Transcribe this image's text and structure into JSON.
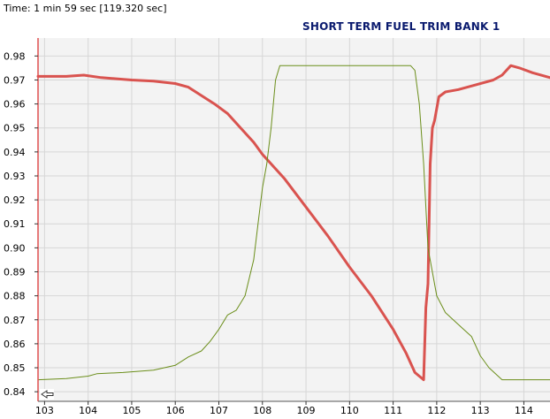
{
  "header": {
    "time_readout": "Time: 1 min 59 sec [119.320 sec]"
  },
  "chart_data": {
    "type": "line",
    "title": "SHORT TERM FUEL TRIM BANK 1",
    "xlabel": "",
    "ylabel": "",
    "xlim": [
      102.85,
      114.6
    ],
    "ylim": [
      0.836,
      0.9875
    ],
    "x_ticks": [
      103,
      104,
      105,
      106,
      107,
      108,
      109,
      110,
      111,
      112,
      113,
      114
    ],
    "y_ticks": [
      0.84,
      0.85,
      0.86,
      0.87,
      0.88,
      0.89,
      0.9,
      0.91,
      0.92,
      0.93,
      0.94,
      0.95,
      0.96,
      0.97,
      0.98
    ],
    "y_tick_labels": [
      "0.84",
      "0.85",
      "0.86",
      "0.87",
      "0.88",
      "0.89",
      "0.90",
      "0.91",
      "0.92",
      "0.93",
      "0.94",
      "0.95",
      "0.96",
      "0.97",
      "0.98"
    ],
    "grid": true,
    "colors": {
      "red_series": "#d9534f",
      "green_series": "#6b8e1a",
      "grid": "#d6d6d6",
      "plot_bg": "#f3f3f3",
      "left_axis": "#e05050"
    },
    "series": [
      {
        "color": "#d9534f",
        "x": [
          102.85,
          103.5,
          103.9,
          104.3,
          105.0,
          105.5,
          106.0,
          106.3,
          106.6,
          106.9,
          107.2,
          107.5,
          107.8,
          108.0,
          108.5,
          109.0,
          109.5,
          110.0,
          110.5,
          111.0,
          111.3,
          111.5,
          111.7,
          111.75,
          111.8,
          111.85,
          111.9,
          111.95,
          112.05,
          112.2,
          112.5,
          112.9,
          113.3,
          113.5,
          113.7,
          113.9,
          114.2,
          114.6
        ],
        "y": [
          0.9715,
          0.9715,
          0.972,
          0.971,
          0.97,
          0.9695,
          0.9685,
          0.967,
          0.9635,
          0.96,
          0.956,
          0.95,
          0.944,
          0.939,
          0.929,
          0.917,
          0.905,
          0.892,
          0.88,
          0.866,
          0.856,
          0.848,
          0.845,
          0.875,
          0.885,
          0.935,
          0.95,
          0.953,
          0.963,
          0.965,
          0.966,
          0.968,
          0.97,
          0.972,
          0.976,
          0.975,
          0.973,
          0.971
        ]
      },
      {
        "color": "#6b8e1a",
        "x": [
          102.85,
          103.5,
          104.0,
          104.2,
          104.8,
          105.5,
          106.0,
          106.3,
          106.6,
          106.8,
          107.0,
          107.2,
          107.4,
          107.6,
          107.8,
          107.9,
          108.0,
          108.1,
          108.2,
          108.3,
          108.4,
          109.0,
          109.5,
          110.0,
          110.5,
          111.0,
          111.4,
          111.5,
          111.6,
          111.7,
          111.8,
          112.0,
          112.2,
          112.5,
          112.8,
          113.0,
          113.2,
          113.5,
          114.0,
          114.6
        ],
        "y": [
          0.845,
          0.8455,
          0.8465,
          0.8475,
          0.848,
          0.849,
          0.851,
          0.8545,
          0.857,
          0.861,
          0.866,
          0.872,
          0.874,
          0.88,
          0.895,
          0.91,
          0.925,
          0.935,
          0.95,
          0.97,
          0.976,
          0.976,
          0.976,
          0.976,
          0.976,
          0.976,
          0.976,
          0.974,
          0.96,
          0.935,
          0.9,
          0.88,
          0.873,
          0.868,
          0.863,
          0.855,
          0.85,
          0.845,
          0.845,
          0.845
        ]
      }
    ]
  }
}
